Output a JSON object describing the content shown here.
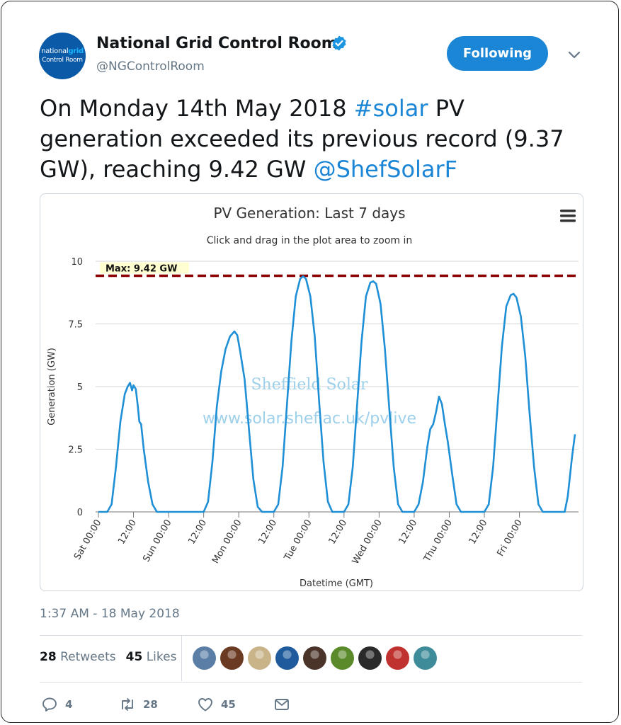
{
  "author": {
    "display_name": "National Grid Control Room",
    "handle": "@NGControlRoom",
    "avatar_text_line1a": "national",
    "avatar_text_line1b": "grid",
    "avatar_text_line2": "Control Room"
  },
  "follow_button_label": "Following",
  "tweet": {
    "text_part1": "On Monday 14th May 2018 ",
    "hashtag": "#solar",
    "text_part2": " PV generation exceeded its previous record (9.37 GW), reaching 9.42 GW ",
    "mention": "@ShefSolarF"
  },
  "chart_data": {
    "type": "line",
    "title": "PV Generation: Last 7 days",
    "subtitle": "Click and drag in the plot area to zoom in",
    "xlabel": "Datetime (GMT)",
    "ylabel": "Generation (GW)",
    "ylim": [
      0,
      10
    ],
    "yticks": [
      "0",
      "2.5",
      "5",
      "7.5",
      "10"
    ],
    "xticks": [
      "Sat 00:00",
      "12:00",
      "Sun 00:00",
      "12:00",
      "Mon 00:00",
      "12:00",
      "Tue 00:00",
      "12:00",
      "Wed 00:00",
      "12:00",
      "Thu 00:00",
      "12:00",
      "Fri 00:00"
    ],
    "x_unit_hours_per_tick": 12,
    "max_line": {
      "value": 9.42,
      "label": "Max: 9.42 GW"
    },
    "watermark_line1": "Sheffield Solar",
    "watermark_line2": "www.solar.shef.ac.uk/pvlive",
    "series": [
      {
        "color": "#1f8fd6",
        "points": [
          [
            0,
            0
          ],
          [
            3,
            0
          ],
          [
            4.5,
            0.3
          ],
          [
            6,
            1.8
          ],
          [
            7.5,
            3.6
          ],
          [
            9,
            4.7
          ],
          [
            10,
            5.0
          ],
          [
            10.8,
            5.15
          ],
          [
            11.5,
            4.85
          ],
          [
            12,
            5.05
          ],
          [
            12.8,
            4.9
          ],
          [
            13.5,
            4.2
          ],
          [
            14,
            3.6
          ],
          [
            14.6,
            3.5
          ],
          [
            15.5,
            2.5
          ],
          [
            17,
            1.2
          ],
          [
            18.5,
            0.3
          ],
          [
            20,
            0
          ],
          [
            36,
            0
          ],
          [
            37.5,
            0.4
          ],
          [
            39,
            2.0
          ],
          [
            40.5,
            4.2
          ],
          [
            42,
            5.6
          ],
          [
            43.5,
            6.5
          ],
          [
            45,
            7.0
          ],
          [
            46.5,
            7.2
          ],
          [
            47.5,
            7.05
          ],
          [
            48.5,
            6.4
          ],
          [
            50,
            5.3
          ],
          [
            51.5,
            3.3
          ],
          [
            53,
            1.3
          ],
          [
            54.5,
            0.2
          ],
          [
            56,
            0
          ],
          [
            60,
            0
          ],
          [
            61.5,
            0.3
          ],
          [
            63,
            1.8
          ],
          [
            64.5,
            4.3
          ],
          [
            66,
            6.8
          ],
          [
            67.5,
            8.6
          ],
          [
            69,
            9.3
          ],
          [
            70,
            9.4
          ],
          [
            71,
            9.3
          ],
          [
            72.5,
            8.6
          ],
          [
            74,
            7.0
          ],
          [
            75.5,
            4.4
          ],
          [
            77,
            2.0
          ],
          [
            78.5,
            0.4
          ],
          [
            80,
            0
          ],
          [
            84,
            0
          ],
          [
            85.5,
            0.3
          ],
          [
            87,
            1.8
          ],
          [
            88.5,
            4.3
          ],
          [
            90,
            6.8
          ],
          [
            91.5,
            8.6
          ],
          [
            93,
            9.15
          ],
          [
            94,
            9.2
          ],
          [
            95,
            9.1
          ],
          [
            96.5,
            8.3
          ],
          [
            98,
            6.5
          ],
          [
            99.5,
            4.1
          ],
          [
            101,
            1.8
          ],
          [
            102.5,
            0.3
          ],
          [
            104,
            0
          ],
          [
            108,
            0
          ],
          [
            109.5,
            0.3
          ],
          [
            111,
            1.2
          ],
          [
            112.5,
            2.6
          ],
          [
            113.5,
            3.3
          ],
          [
            114.5,
            3.5
          ],
          [
            115.5,
            4.0
          ],
          [
            116.5,
            4.6
          ],
          [
            117.5,
            4.3
          ],
          [
            118.5,
            3.5
          ],
          [
            119.5,
            2.8
          ],
          [
            121,
            1.5
          ],
          [
            122.5,
            0.3
          ],
          [
            124,
            0
          ],
          [
            132,
            0
          ],
          [
            133.5,
            0.3
          ],
          [
            135,
            1.8
          ],
          [
            136.5,
            4.2
          ],
          [
            138,
            6.6
          ],
          [
            139.5,
            8.2
          ],
          [
            141,
            8.65
          ],
          [
            142,
            8.7
          ],
          [
            143,
            8.55
          ],
          [
            144.5,
            7.8
          ],
          [
            146,
            6.2
          ],
          [
            147.5,
            3.9
          ],
          [
            149,
            1.8
          ],
          [
            150.5,
            0.3
          ],
          [
            152,
            0
          ],
          [
            159.5,
            0
          ],
          [
            160.5,
            0.6
          ],
          [
            162,
            2.2
          ],
          [
            163,
            3.1
          ]
        ]
      }
    ]
  },
  "timestamp": "1:37 AM - 18 May 2018",
  "stats": {
    "retweets_count": "28",
    "retweets_label": "Retweets",
    "likes_count": "45",
    "likes_label": "Likes"
  },
  "likers": [
    "#5a7ea6",
    "#6b3a22",
    "#c9b48a",
    "#1e5a9c",
    "#4a3328",
    "#5a8a2a",
    "#2a2a2a",
    "#c0322f",
    "#3e8c9a"
  ],
  "actions": {
    "reply_count": "4",
    "retweet_count": "28",
    "like_count": "45"
  }
}
